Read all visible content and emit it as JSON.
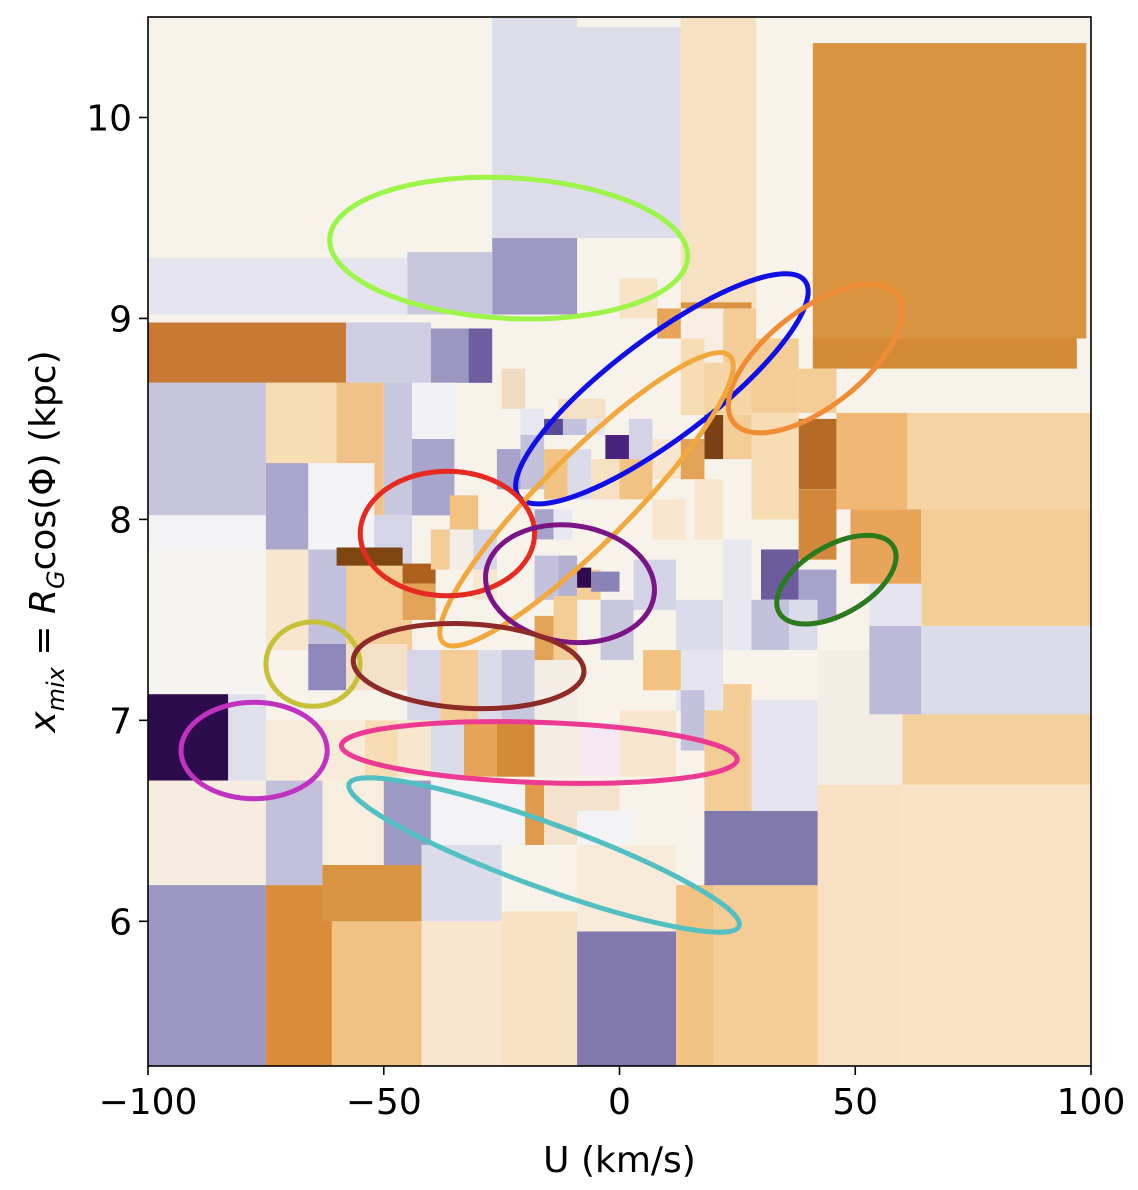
{
  "chart_data": {
    "type": "heatmap",
    "title": "",
    "xlabel": "U (km/s)",
    "ylabel_parts": {
      "x": "x",
      "x_sub": "mix",
      "eq": " = ",
      "r": "R",
      "r_sub": "G",
      "rest": "cos(Φ) (kpc)"
    },
    "xlim": [
      -100,
      100
    ],
    "ylim": [
      5.28,
      10.5
    ],
    "xticks": [
      -100,
      -50,
      0,
      50,
      100
    ],
    "xtick_labels": [
      "−100",
      "−50",
      "0",
      "50",
      "100"
    ],
    "yticks": [
      6,
      7,
      8,
      9,
      10
    ],
    "ytick_labels": [
      "6",
      "7",
      "8",
      "9",
      "10"
    ],
    "grid": false,
    "colormap": "PuOr (orange = positive, purple = negative)",
    "cells": [
      {
        "x0": -100,
        "x1": 100,
        "y0": 5.28,
        "y1": 10.5,
        "c": "#f7f2ea"
      },
      {
        "x0": -27,
        "x1": -9,
        "y0": 9.4,
        "y1": 10.5,
        "c": "#dcdde9"
      },
      {
        "x0": -9,
        "x1": 13,
        "y0": 9.4,
        "y1": 10.45,
        "c": "#dcdde9"
      },
      {
        "x0": 13,
        "x1": 29,
        "y0": 9.05,
        "y1": 10.5,
        "c": "#f8e1c2"
      },
      {
        "x0": 41,
        "x1": 99,
        "y0": 8.9,
        "y1": 10.37,
        "c": "#d99441"
      },
      {
        "x0": 41,
        "x1": 97,
        "y0": 8.75,
        "y1": 8.9,
        "c": "#d58a38"
      },
      {
        "x0": -27,
        "x1": -9,
        "y0": 9.02,
        "y1": 9.4,
        "c": "#9e98c4"
      },
      {
        "x0": -45,
        "x1": -27,
        "y0": 9.02,
        "y1": 9.33,
        "c": "#c9c7de"
      },
      {
        "x0": -100,
        "x1": -45,
        "y0": 9.02,
        "y1": 9.3,
        "c": "#e5e4ef"
      },
      {
        "x0": -100,
        "x1": -58,
        "y0": 8.68,
        "y1": 8.98,
        "c": "#c87a35"
      },
      {
        "x0": -58,
        "x1": -40,
        "y0": 8.68,
        "y1": 8.98,
        "c": "#cfcde2"
      },
      {
        "x0": -40,
        "x1": -32,
        "y0": 8.68,
        "y1": 8.95,
        "c": "#9c97c2"
      },
      {
        "x0": -32,
        "x1": -27,
        "y0": 8.68,
        "y1": 8.95,
        "c": "#6e5ea0"
      },
      {
        "x0": -100,
        "x1": -75,
        "y0": 8.02,
        "y1": 8.68,
        "c": "#c7c5de"
      },
      {
        "x0": -75,
        "x1": -60,
        "y0": 8.02,
        "y1": 8.68,
        "c": "#f7dcb4"
      },
      {
        "x0": -60,
        "x1": -50,
        "y0": 8.02,
        "y1": 8.68,
        "c": "#f1c288"
      },
      {
        "x0": -50,
        "x1": -44,
        "y0": 8.02,
        "y1": 8.68,
        "c": "#c9c7de"
      },
      {
        "x0": -44,
        "x1": -35,
        "y0": 8.4,
        "y1": 8.68,
        "c": "#f2f1f5"
      },
      {
        "x0": -44,
        "x1": -35,
        "y0": 8.02,
        "y1": 8.4,
        "c": "#a9a4cb"
      },
      {
        "x0": -100,
        "x1": -75,
        "y0": 7.85,
        "y1": 8.02,
        "c": "#f3f3f5"
      },
      {
        "x0": -75,
        "x1": -66,
        "y0": 7.85,
        "y1": 8.28,
        "c": "#aba6cc"
      },
      {
        "x0": -66,
        "x1": -52,
        "y0": 7.85,
        "y1": 8.28,
        "c": "#f3f3f5"
      },
      {
        "x0": -52,
        "x1": -44,
        "y0": 7.65,
        "y1": 8.02,
        "c": "#d6d5e7"
      },
      {
        "x0": -100,
        "x1": -75,
        "y0": 7.05,
        "y1": 7.85,
        "c": "#f6f4f0"
      },
      {
        "x0": -75,
        "x1": -66,
        "y0": 7.35,
        "y1": 7.85,
        "c": "#f8e6cf"
      },
      {
        "x0": -66,
        "x1": -58,
        "y0": 7.35,
        "y1": 7.85,
        "c": "#c3c1dc"
      },
      {
        "x0": -58,
        "x1": -44,
        "y0": 7.35,
        "y1": 7.78,
        "c": "#f4cd96"
      },
      {
        "x0": -60,
        "x1": -46,
        "y0": 7.77,
        "y1": 7.86,
        "c": "#7c4512"
      },
      {
        "x0": -46,
        "x1": -39,
        "y0": 7.68,
        "y1": 7.78,
        "c": "#ad5f1c"
      },
      {
        "x0": -46,
        "x1": -39,
        "y0": 7.5,
        "y1": 7.68,
        "c": "#e2a257"
      },
      {
        "x0": -66,
        "x1": -58,
        "y0": 7.15,
        "y1": 7.38,
        "c": "#8f87bb"
      },
      {
        "x0": -58,
        "x1": -45,
        "y0": 7.15,
        "y1": 7.38,
        "c": "#f4e0c6"
      },
      {
        "x0": -100,
        "x1": -83,
        "y0": 6.7,
        "y1": 7.13,
        "c": "#2d0b4c"
      },
      {
        "x0": -83,
        "x1": -75,
        "y0": 6.7,
        "y1": 7.13,
        "c": "#e0e0ec"
      },
      {
        "x0": -75,
        "x1": -54,
        "y0": 6.7,
        "y1": 7.0,
        "c": "#f8ebd9"
      },
      {
        "x0": -100,
        "x1": -75,
        "y0": 6.18,
        "y1": 6.7,
        "c": "#f7ece0"
      },
      {
        "x0": -75,
        "x1": -63,
        "y0": 6.18,
        "y1": 6.7,
        "c": "#c3c0dc"
      },
      {
        "x0": -63,
        "x1": -50,
        "y0": 6.18,
        "y1": 6.7,
        "c": "#f8eee0"
      },
      {
        "x0": -50,
        "x1": -40,
        "y0": 6.28,
        "y1": 6.7,
        "c": "#9e98c4"
      },
      {
        "x0": -40,
        "x1": -20,
        "y0": 6.38,
        "y1": 6.7,
        "c": "#f3f2f4"
      },
      {
        "x0": -20,
        "x1": -16,
        "y0": 6.38,
        "y1": 6.7,
        "c": "#e09a4c"
      },
      {
        "x0": -16,
        "x1": 0,
        "y0": 6.38,
        "y1": 6.7,
        "c": "#f4e2cc"
      },
      {
        "x0": -100,
        "x1": -75,
        "y0": 5.28,
        "y1": 6.18,
        "c": "#9d97c3"
      },
      {
        "x0": -75,
        "x1": -61,
        "y0": 5.28,
        "y1": 6.18,
        "c": "#d98d39"
      },
      {
        "x0": -61,
        "x1": -42,
        "y0": 5.28,
        "y1": 6.0,
        "c": "#f2c283"
      },
      {
        "x0": -63,
        "x1": -42,
        "y0": 6.0,
        "y1": 6.28,
        "c": "#d99441"
      },
      {
        "x0": -42,
        "x1": -25,
        "y0": 5.28,
        "y1": 6.0,
        "c": "#f8e6cf"
      },
      {
        "x0": -42,
        "x1": -25,
        "y0": 6.0,
        "y1": 6.38,
        "c": "#dcdbea"
      },
      {
        "x0": -25,
        "x1": -9,
        "y0": 5.28,
        "y1": 6.05,
        "c": "#f8e1c2"
      },
      {
        "x0": -9,
        "x1": 12,
        "y0": 5.28,
        "y1": 5.95,
        "c": "#8178ae"
      },
      {
        "x0": -9,
        "x1": 12,
        "y0": 5.95,
        "y1": 6.38,
        "c": "#f8ebd9"
      },
      {
        "x0": 12,
        "x1": 20,
        "y0": 5.28,
        "y1": 6.18,
        "c": "#f2c283"
      },
      {
        "x0": 20,
        "x1": 42,
        "y0": 5.28,
        "y1": 6.18,
        "c": "#f4cd96"
      },
      {
        "x0": 42,
        "x1": 60,
        "y0": 5.28,
        "y1": 6.68,
        "c": "#f8e1c2"
      },
      {
        "x0": 60,
        "x1": 100,
        "y0": 5.28,
        "y1": 6.68,
        "c": "#f9e3c6"
      },
      {
        "x0": 18,
        "x1": 42,
        "y0": 6.18,
        "y1": 6.55,
        "c": "#8178ae"
      },
      {
        "x0": 60,
        "x1": 100,
        "y0": 6.68,
        "y1": 7.05,
        "c": "#f4d09c"
      },
      {
        "x0": 18,
        "x1": 28,
        "y0": 6.55,
        "y1": 7.18,
        "c": "#f4cd96"
      },
      {
        "x0": 28,
        "x1": 42,
        "y0": 6.55,
        "y1": 7.1,
        "c": "#e6e5ef"
      },
      {
        "x0": 42,
        "x1": 60,
        "y0": 6.68,
        "y1": 7.35,
        "c": "#f4ede5"
      },
      {
        "x0": 53,
        "x1": 64,
        "y0": 7.03,
        "y1": 7.47,
        "c": "#bdb9d8"
      },
      {
        "x0": 64,
        "x1": 100,
        "y0": 7.03,
        "y1": 7.47,
        "c": "#dcdbea"
      },
      {
        "x0": 64,
        "x1": 100,
        "y0": 7.47,
        "y1": 8.05,
        "c": "#f4cd96"
      },
      {
        "x0": 60,
        "x1": 100,
        "y0": 8.05,
        "y1": 8.53,
        "c": "#f6d4a4"
      },
      {
        "x0": 53,
        "x1": 64,
        "y0": 7.47,
        "y1": 7.68,
        "c": "#e6e5ef"
      },
      {
        "x0": 49,
        "x1": 64,
        "y0": 7.68,
        "y1": 8.05,
        "c": "#e8a559"
      },
      {
        "x0": 46,
        "x1": 61,
        "y0": 8.05,
        "y1": 8.53,
        "c": "#f0b774"
      },
      {
        "x0": 38,
        "x1": 46,
        "y0": 8.15,
        "y1": 8.5,
        "c": "#b56b25"
      },
      {
        "x0": 38,
        "x1": 46,
        "y0": 8.53,
        "y1": 8.75,
        "c": "#f4cd96"
      },
      {
        "x0": 28,
        "x1": 38,
        "y0": 8.0,
        "y1": 8.53,
        "c": "#f7dcb4"
      },
      {
        "x0": 28,
        "x1": 38,
        "y0": 8.53,
        "y1": 8.9,
        "c": "#f4cd96"
      },
      {
        "x0": 38,
        "x1": 46,
        "y0": 7.8,
        "y1": 8.15,
        "c": "#d1883a"
      },
      {
        "x0": 30,
        "x1": 38,
        "y0": 7.6,
        "y1": 7.85,
        "c": "#6d5c9d"
      },
      {
        "x0": 38,
        "x1": 46,
        "y0": 7.5,
        "y1": 7.75,
        "c": "#a7a2ca"
      },
      {
        "x0": 28,
        "x1": 36,
        "y0": 7.35,
        "y1": 7.6,
        "c": "#c4c1dc"
      },
      {
        "x0": 36,
        "x1": 42,
        "y0": 7.35,
        "y1": 7.6,
        "c": "#dcdbea"
      },
      {
        "x0": 22,
        "x1": 28,
        "y0": 7.35,
        "y1": 7.9,
        "c": "#e9e8f0"
      },
      {
        "x0": 16,
        "x1": 22,
        "y0": 7.9,
        "y1": 8.2,
        "c": "#f8e6cf"
      },
      {
        "x0": 18,
        "x1": 22,
        "y0": 8.3,
        "y1": 8.52,
        "c": "#7a4116"
      },
      {
        "x0": 22,
        "x1": 28,
        "y0": 8.3,
        "y1": 8.52,
        "c": "#f4cd96"
      },
      {
        "x0": 14,
        "x1": 28,
        "y0": 8.52,
        "y1": 8.78,
        "c": "#f5d4a5"
      },
      {
        "x0": 14,
        "x1": 22,
        "y0": 8.78,
        "y1": 9.05,
        "c": "#f7ede2"
      },
      {
        "x0": 22,
        "x1": 29,
        "y0": 8.78,
        "y1": 9.05,
        "c": "#f4cd96"
      },
      {
        "x0": 13,
        "x1": 28,
        "y0": 9.05,
        "y1": 9.08,
        "c": "#d99441"
      },
      {
        "x0": 0,
        "x1": 8,
        "y0": 9.0,
        "y1": 9.2,
        "c": "#f9e3c6"
      },
      {
        "x0": 8,
        "x1": 13,
        "y0": 8.9,
        "y1": 9.05,
        "c": "#e8a559"
      },
      {
        "x0": 13,
        "x1": 18,
        "y0": 8.52,
        "y1": 8.9,
        "c": "#f7dcb4"
      },
      {
        "x0": -13,
        "x1": -3,
        "y0": 8.5,
        "y1": 8.6,
        "c": "#f4e0c6"
      },
      {
        "x0": -3,
        "x1": 2,
        "y0": 8.3,
        "y1": 8.42,
        "c": "#4a2380"
      },
      {
        "x0": 2,
        "x1": 7,
        "y0": 8.3,
        "y1": 8.5,
        "c": "#d4d2e6"
      },
      {
        "x0": 7,
        "x1": 13,
        "y0": 8.2,
        "y1": 8.4,
        "c": "#f8e6cf"
      },
      {
        "x0": 13,
        "x1": 18,
        "y0": 8.2,
        "y1": 8.4,
        "c": "#e2a257"
      },
      {
        "x0": -25,
        "x1": -20,
        "y0": 8.55,
        "y1": 8.75,
        "c": "#f0dcc3"
      },
      {
        "x0": -26,
        "x1": -21,
        "y0": 8.15,
        "y1": 8.35,
        "c": "#a7a2ca"
      },
      {
        "x0": -21,
        "x1": -16,
        "y0": 8.42,
        "y1": 8.55,
        "c": "#e8e7ef"
      },
      {
        "x0": -21,
        "x1": -16,
        "y0": 8.15,
        "y1": 8.42,
        "c": "#c4c1dc"
      },
      {
        "x0": -16,
        "x1": -12,
        "y0": 8.42,
        "y1": 8.5,
        "c": "#5b4a94"
      },
      {
        "x0": -12,
        "x1": -7,
        "y0": 8.42,
        "y1": 8.5,
        "c": "#c4c1dc"
      },
      {
        "x0": -7,
        "x1": -3,
        "y0": 8.42,
        "y1": 8.5,
        "c": "#e8e7ef"
      },
      {
        "x0": -16,
        "x1": -11,
        "y0": 8.1,
        "y1": 8.35,
        "c": "#f2c283"
      },
      {
        "x0": -11,
        "x1": -6,
        "y0": 8.1,
        "y1": 8.35,
        "c": "#dcdbea"
      },
      {
        "x0": -6,
        "x1": 0,
        "y0": 8.1,
        "y1": 8.3,
        "c": "#f8e1c2"
      },
      {
        "x0": 0,
        "x1": 7,
        "y0": 8.1,
        "y1": 8.3,
        "c": "#f2c283"
      },
      {
        "x0": 7,
        "x1": 14,
        "y0": 7.9,
        "y1": 8.1,
        "c": "#f8e6cf"
      },
      {
        "x0": -36,
        "x1": -30,
        "y0": 7.95,
        "y1": 8.12,
        "c": "#f2c283"
      },
      {
        "x0": -40,
        "x1": -36,
        "y0": 7.75,
        "y1": 7.95,
        "c": "#f4cd96"
      },
      {
        "x0": -36,
        "x1": -31,
        "y0": 7.75,
        "y1": 7.95,
        "c": "#f4ede5"
      },
      {
        "x0": -31,
        "x1": -26,
        "y0": 7.75,
        "y1": 7.95,
        "c": "#d6d5e7"
      },
      {
        "x0": -31,
        "x1": -26,
        "y0": 7.6,
        "y1": 7.75,
        "c": "#f8e6cf"
      },
      {
        "x0": -18,
        "x1": -14,
        "y0": 7.9,
        "y1": 8.05,
        "c": "#a7a2ca"
      },
      {
        "x0": -14,
        "x1": -10,
        "y0": 7.9,
        "y1": 8.05,
        "c": "#e9e8f0"
      },
      {
        "x0": -18,
        "x1": -13,
        "y0": 7.6,
        "y1": 7.82,
        "c": "#c4c1dc"
      },
      {
        "x0": -13,
        "x1": -9,
        "y0": 7.6,
        "y1": 7.82,
        "c": "#b4b0d2"
      },
      {
        "x0": -9,
        "x1": -4,
        "y0": 7.6,
        "y1": 7.75,
        "c": "#f4cd96"
      },
      {
        "x0": -14,
        "x1": -9,
        "y0": 7.52,
        "y1": 7.62,
        "c": "#f4cd96"
      },
      {
        "x0": -18,
        "x1": -14,
        "y0": 7.3,
        "y1": 7.52,
        "c": "#e2a257"
      },
      {
        "x0": -14,
        "x1": -9,
        "y0": 7.3,
        "y1": 7.52,
        "c": "#f4cd96"
      },
      {
        "x0": -9,
        "x1": -6,
        "y0": 7.66,
        "y1": 7.76,
        "c": "#2d0b4c"
      },
      {
        "x0": -6,
        "x1": 0,
        "y0": 7.64,
        "y1": 7.74,
        "c": "#8b82b8"
      },
      {
        "x0": -4,
        "x1": 3,
        "y0": 7.3,
        "y1": 7.6,
        "c": "#c9c7de"
      },
      {
        "x0": 3,
        "x1": 12,
        "y0": 7.55,
        "y1": 7.8,
        "c": "#d4d2e6"
      },
      {
        "x0": 12,
        "x1": 22,
        "y0": 7.35,
        "y1": 7.6,
        "c": "#dcdbea"
      },
      {
        "x0": 12,
        "x1": 22,
        "y0": 7.05,
        "y1": 7.35,
        "c": "#e6e5ef"
      },
      {
        "x0": -45,
        "x1": -38,
        "y0": 7.0,
        "y1": 7.35,
        "c": "#d6d5e7"
      },
      {
        "x0": -38,
        "x1": -30,
        "y0": 7.0,
        "y1": 7.35,
        "c": "#f4cd96"
      },
      {
        "x0": -30,
        "x1": -25,
        "y0": 7.0,
        "y1": 7.35,
        "c": "#dcdbea"
      },
      {
        "x0": -25,
        "x1": -18,
        "y0": 7.0,
        "y1": 7.35,
        "c": "#c9c7de"
      },
      {
        "x0": -18,
        "x1": -9,
        "y0": 7.0,
        "y1": 7.3,
        "c": "#f4ede5"
      },
      {
        "x0": 5,
        "x1": 13,
        "y0": 7.15,
        "y1": 7.35,
        "c": "#f2c283"
      },
      {
        "x0": 13,
        "x1": 18,
        "y0": 6.85,
        "y1": 7.15,
        "c": "#c4c1dc"
      },
      {
        "x0": 0,
        "x1": 12,
        "y0": 6.72,
        "y1": 7.05,
        "c": "#f8e6cf"
      },
      {
        "x0": -40,
        "x1": -33,
        "y0": 6.72,
        "y1": 7.0,
        "c": "#dcdbea"
      },
      {
        "x0": -33,
        "x1": -26,
        "y0": 6.72,
        "y1": 7.0,
        "c": "#e8a559"
      },
      {
        "x0": -26,
        "x1": -18,
        "y0": 6.72,
        "y1": 7.0,
        "c": "#d58a38"
      },
      {
        "x0": -18,
        "x1": -8,
        "y0": 6.72,
        "y1": 7.0,
        "c": "#f4ede5"
      },
      {
        "x0": -54,
        "x1": -47,
        "y0": 6.72,
        "y1": 7.0,
        "c": "#f7dcb4"
      },
      {
        "x0": -47,
        "x1": -40,
        "y0": 6.72,
        "y1": 7.0,
        "c": "#f8e6cf"
      },
      {
        "x0": -8,
        "x1": 0,
        "y0": 6.72,
        "y1": 6.98,
        "c": "#f6e8f3"
      },
      {
        "x0": -9,
        "x1": 3,
        "y0": 6.38,
        "y1": 6.55,
        "c": "#f3f3f5"
      }
    ],
    "ellipses": [
      {
        "cx": -23.5,
        "cy": 9.35,
        "rx": 38,
        "ry": 0.35,
        "rot": -3,
        "color": "#9ef54a"
      },
      {
        "cx": 9,
        "cy": 8.65,
        "rx": 38,
        "ry": 0.25,
        "rot": 37,
        "color": "#1010e6"
      },
      {
        "cx": 41.5,
        "cy": 8.8,
        "rx": 22,
        "ry": 0.24,
        "rot": 38,
        "color": "#f08c35"
      },
      {
        "cx": -7,
        "cy": 8.1,
        "rx": 43,
        "ry": 0.22,
        "rot": 45,
        "color": "#f2a83c"
      },
      {
        "cx": -36.5,
        "cy": 7.93,
        "rx": 18.5,
        "ry": 0.31,
        "rot": 0,
        "color": "#e62a22"
      },
      {
        "cx": -10.5,
        "cy": 7.68,
        "rx": 18,
        "ry": 0.29,
        "rot": -8,
        "color": "#7b1585"
      },
      {
        "cx": 46,
        "cy": 7.7,
        "rx": 14,
        "ry": 0.17,
        "rot": 30,
        "color": "#2b7a1e"
      },
      {
        "cx": -65,
        "cy": 7.28,
        "rx": 10,
        "ry": 0.21,
        "rot": 0,
        "color": "#c6c139"
      },
      {
        "cx": -32,
        "cy": 7.27,
        "rx": 24.5,
        "ry": 0.21,
        "rot": -3,
        "color": "#8e2a28"
      },
      {
        "cx": -77.5,
        "cy": 6.85,
        "rx": 15.5,
        "ry": 0.24,
        "rot": 0,
        "color": "#c033c1"
      },
      {
        "cx": -17,
        "cy": 6.84,
        "rx": 42,
        "ry": 0.15,
        "rot": -2,
        "color": "#ec3a93"
      },
      {
        "cx": -16,
        "cy": 6.33,
        "rx": 44,
        "ry": 0.16,
        "rot": -20,
        "color": "#52c0c2"
      }
    ]
  }
}
